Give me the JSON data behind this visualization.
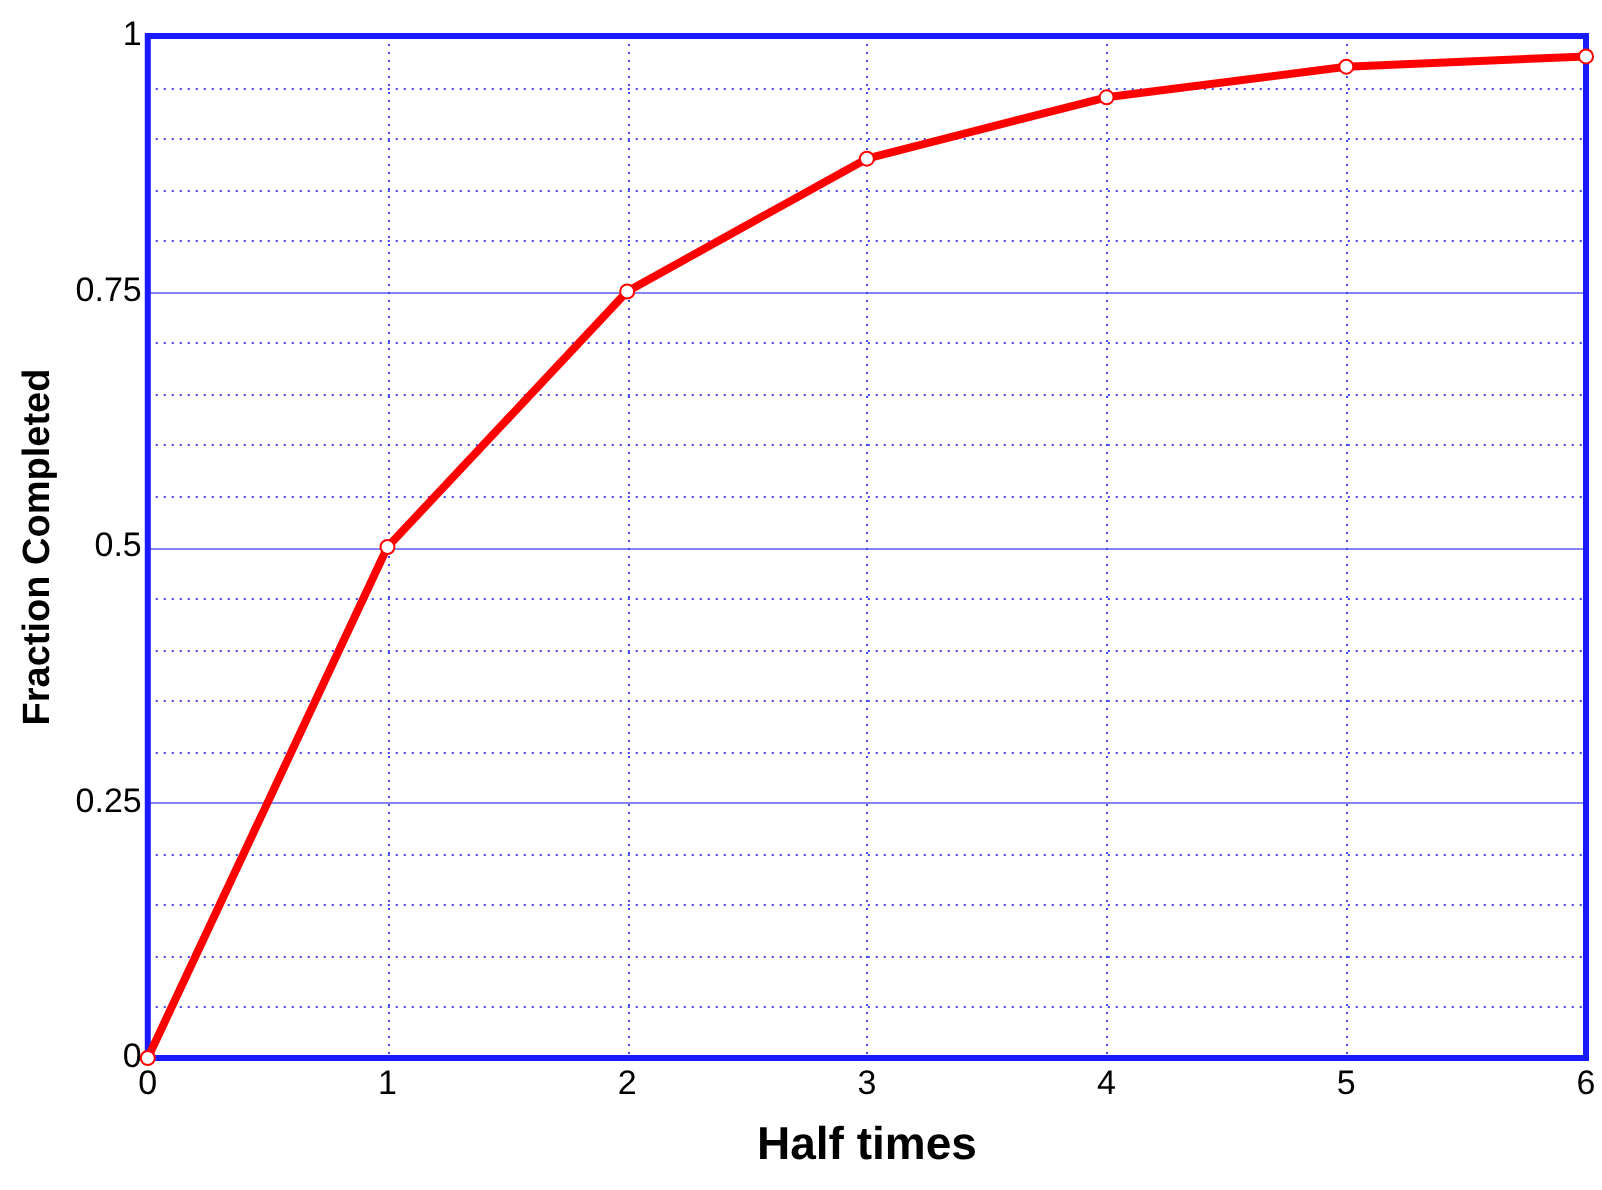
{
  "chart_data": {
    "type": "line",
    "xlabel": "Half times",
    "ylabel": "Fraction Completed",
    "x": [
      0,
      1,
      2,
      3,
      4,
      5,
      6
    ],
    "series": [
      {
        "color": "#ff0000",
        "values": [
          0,
          0.5,
          0.75,
          0.88,
          0.94,
          0.97,
          0.98
        ]
      }
    ],
    "xlim": [
      0,
      6
    ],
    "xticks": [
      0,
      1,
      2,
      3,
      4,
      5,
      6
    ],
    "ylim": [
      0,
      1
    ],
    "yticks": [
      0,
      {
        "value": 0.05,
        "label": null
      },
      {
        "value": 0.1,
        "label": null
      },
      {
        "value": 0.15,
        "label": null
      },
      {
        "value": 0.2,
        "label": null
      },
      0.25,
      {
        "value": 0.3,
        "label": null
      },
      {
        "value": 0.35,
        "label": null
      },
      {
        "value": 0.4,
        "label": null
      },
      {
        "value": 0.45,
        "label": null
      },
      0.5,
      {
        "value": 0.55,
        "label": null
      },
      {
        "value": 0.6,
        "label": null
      },
      {
        "value": 0.65,
        "label": null
      },
      {
        "value": 0.7,
        "label": null
      },
      0.75,
      {
        "value": 0.8,
        "label": null
      },
      {
        "value": 0.85,
        "label": null
      },
      {
        "value": 0.9,
        "label": null
      },
      {
        "value": 0.95,
        "label": null
      },
      1
    ],
    "grid": true,
    "legend": false,
    "marker": "circle",
    "line_style": "solid"
  }
}
